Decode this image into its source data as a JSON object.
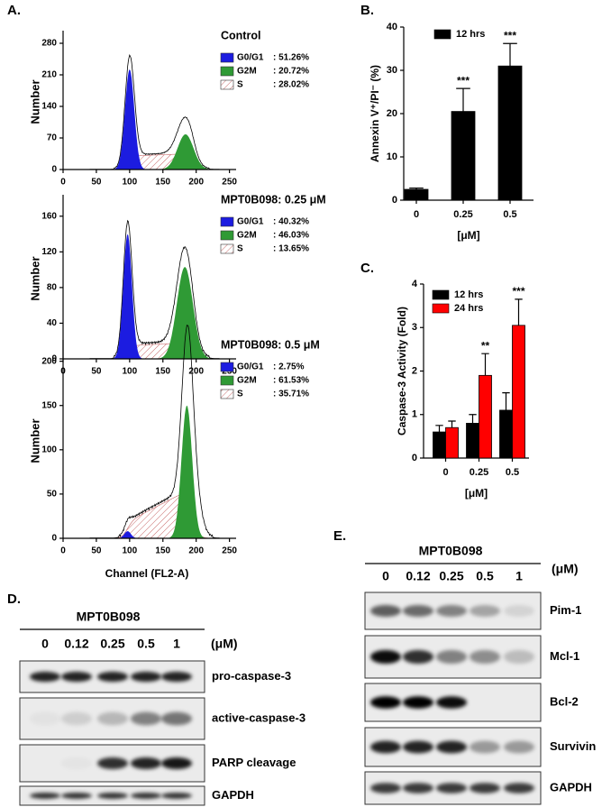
{
  "panel_labels": {
    "A": "A.",
    "B": "B.",
    "C": "C.",
    "D": "D.",
    "E": "E."
  },
  "chart_data": [
    {
      "type": "flow",
      "title": "Control",
      "ylabel": "Number",
      "xlim": [
        0,
        260
      ],
      "xticks": [
        0,
        50,
        100,
        150,
        200,
        250
      ],
      "ylim": [
        0,
        300
      ],
      "yticks": [
        0,
        70,
        140,
        210,
        280
      ],
      "series": [
        {
          "name": "G0/G1",
          "color": "#1c1ce0",
          "label": ": 51.26%"
        },
        {
          "name": "G2M",
          "color": "#2f9a35",
          "label": ": 20.72%"
        },
        {
          "name": "S",
          "color": "#c86a6a",
          "label": ": 28.02%"
        }
      ]
    },
    {
      "type": "flow",
      "title": "MPT0B098: 0.25 μM",
      "ylabel": "Number",
      "xlim": [
        0,
        260
      ],
      "xticks": [
        0,
        50,
        100,
        150,
        200,
        250
      ],
      "ylim": [
        0,
        180
      ],
      "yticks": [
        0,
        40,
        80,
        120,
        160
      ],
      "series": [
        {
          "name": "G0/G1",
          "color": "#1c1ce0",
          "label": ": 40.32%"
        },
        {
          "name": "G2M",
          "color": "#2f9a35",
          "label": ": 46.03%"
        },
        {
          "name": "S",
          "color": "#c86a6a",
          "label": ": 13.65%"
        }
      ]
    },
    {
      "type": "flow",
      "title": "MPT0B098: 0.5 μM",
      "ylabel": "Number",
      "xlabel": "Channel (FL2-A)",
      "xlim": [
        0,
        260
      ],
      "xticks": [
        0,
        50,
        100,
        150,
        200,
        250
      ],
      "ylim": [
        0,
        220
      ],
      "yticks": [
        0,
        50,
        100,
        150,
        200
      ],
      "series": [
        {
          "name": "G0/G1",
          "color": "#1c1ce0",
          "label": ":  2.75%"
        },
        {
          "name": "G2M",
          "color": "#2f9a35",
          "label": ": 61.53%"
        },
        {
          "name": "S",
          "color": "#c86a6a",
          "label": ": 35.71%"
        }
      ]
    },
    {
      "type": "bar",
      "ylabel": "Annexin V⁺/PI⁻ (%)",
      "xlabel": "[μM]",
      "categories": [
        "0",
        "0.25",
        "0.5"
      ],
      "ylim": [
        0,
        40
      ],
      "yticks": [
        0,
        10,
        20,
        30,
        40
      ],
      "series": [
        {
          "name": "12 hrs",
          "color": "#000000",
          "values": [
            2.5,
            20.5,
            31
          ],
          "errors": [
            0.3,
            5.3,
            5.2
          ],
          "annotations": [
            null,
            "***",
            "***"
          ]
        }
      ]
    },
    {
      "type": "bar",
      "ylabel": "Caspase-3 Activity (Fold)",
      "xlabel": "[μM]",
      "categories": [
        "0",
        "0.25",
        "0.5"
      ],
      "ylim": [
        0,
        4
      ],
      "yticks": [
        0,
        1,
        2,
        3,
        4
      ],
      "series": [
        {
          "name": "12 hrs",
          "color": "#000000",
          "values": [
            0.6,
            0.8,
            1.1
          ],
          "errors": [
            0.15,
            0.2,
            0.4
          ],
          "annotations": [
            null,
            null,
            null
          ]
        },
        {
          "name": "24 hrs",
          "color": "#ff0000",
          "values": [
            0.7,
            1.9,
            3.05
          ],
          "errors": [
            0.15,
            0.5,
            0.6
          ],
          "annotations": [
            null,
            "**",
            "***"
          ]
        }
      ]
    }
  ],
  "blots": [
    {
      "treatment": "MPT0B098",
      "unit": "(μM)",
      "lanes": [
        "0",
        "0.12",
        "0.25",
        "0.5",
        "1"
      ],
      "rows": [
        "pro-caspase-3",
        "active-caspase-3",
        "PARP cleavage",
        "GAPDH"
      ]
    },
    {
      "treatment": "MPT0B098",
      "unit": "(μM)",
      "lanes": [
        "0",
        "0.12",
        "0.25",
        "0.5",
        "1"
      ],
      "rows": [
        "Pim-1",
        "Mcl-1",
        "Bcl-2",
        "Survivin",
        "GAPDH"
      ]
    }
  ]
}
